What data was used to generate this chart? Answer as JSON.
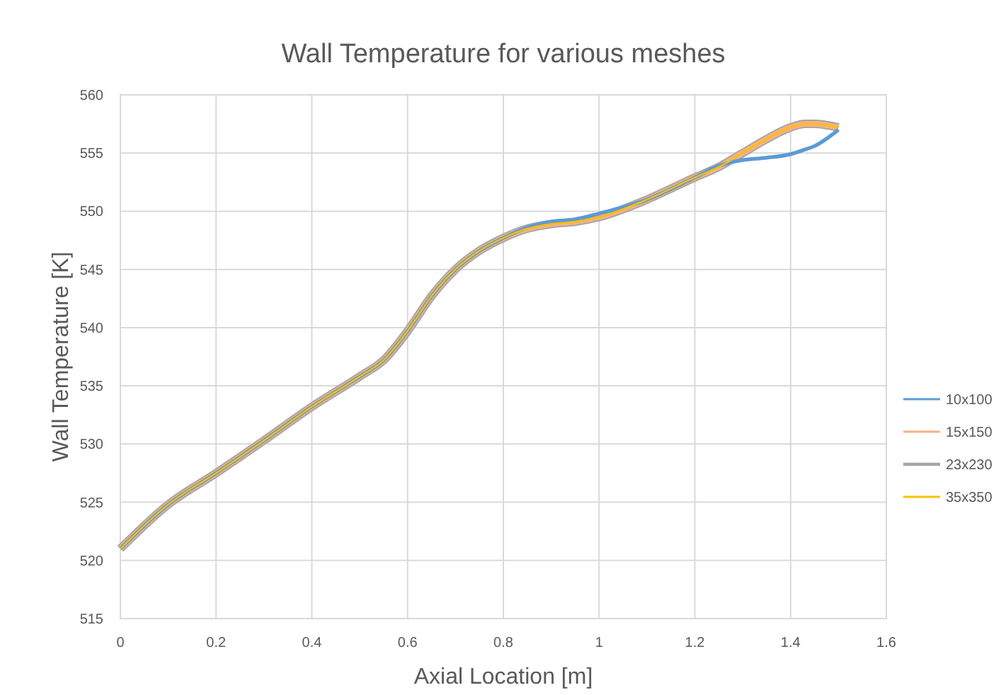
{
  "chart_data": {
    "type": "line",
    "title": "Wall Temperature for various meshes",
    "xlabel": "Axial Location [m]",
    "ylabel": "Wall Temperature [K]",
    "xlim": [
      0,
      1.6
    ],
    "xticks": [
      0,
      0.2,
      0.4,
      0.6,
      0.8,
      1,
      1.2,
      1.4,
      1.6
    ],
    "ylim": [
      515,
      560
    ],
    "yticks": [
      515,
      520,
      525,
      530,
      535,
      540,
      545,
      550,
      555,
      560
    ],
    "grid": true,
    "legend": "right",
    "marker": "none",
    "line_style": "solid",
    "x": [
      0,
      0.1,
      0.2,
      0.3,
      0.4,
      0.5,
      0.55,
      0.6,
      0.65,
      0.7,
      0.75,
      0.8,
      0.85,
      0.9,
      0.95,
      1.0,
      1.1,
      1.2,
      1.25,
      1.3,
      1.35,
      1.4,
      1.43,
      1.45,
      1.5
    ],
    "series": [
      {
        "name": "10x100",
        "color": "#5b9bd5",
        "values": [
          521,
          524.8,
          527.5,
          530.3,
          533.2,
          535.8,
          537.2,
          539.7,
          542.7,
          545,
          546.6,
          547.7,
          548.6,
          549.1,
          549.3,
          549.8,
          551,
          552.9,
          553.9,
          554.4,
          554.6,
          554.9,
          555.3,
          555.6,
          557
        ]
      },
      {
        "name": "15x150",
        "color": "#f4b183",
        "values": [
          521,
          524.8,
          527.5,
          530.3,
          533.2,
          535.8,
          537.2,
          539.7,
          542.7,
          545,
          546.6,
          547.7,
          548.5,
          548.9,
          549.1,
          549.5,
          551,
          552.9,
          553.8,
          555,
          556.2,
          557.2,
          557.5,
          557.5,
          557.2
        ]
      },
      {
        "name": "23x230",
        "color": "#a5a5a5",
        "values": [
          521,
          524.8,
          527.5,
          530.3,
          533.2,
          535.8,
          537.2,
          539.7,
          542.7,
          545,
          546.6,
          547.7,
          548.5,
          548.9,
          549.1,
          549.5,
          551,
          552.9,
          553.8,
          555,
          556.2,
          557.2,
          557.5,
          557.5,
          557.2
        ]
      },
      {
        "name": "35x350",
        "color": "#ffc000",
        "values": [
          521,
          524.8,
          527.5,
          530.3,
          533.2,
          535.8,
          537.2,
          539.7,
          542.7,
          545,
          546.6,
          547.7,
          548.5,
          548.9,
          549.1,
          549.5,
          551,
          552.9,
          553.8,
          555,
          556.2,
          557.2,
          557.5,
          557.5,
          557.2
        ]
      }
    ]
  }
}
